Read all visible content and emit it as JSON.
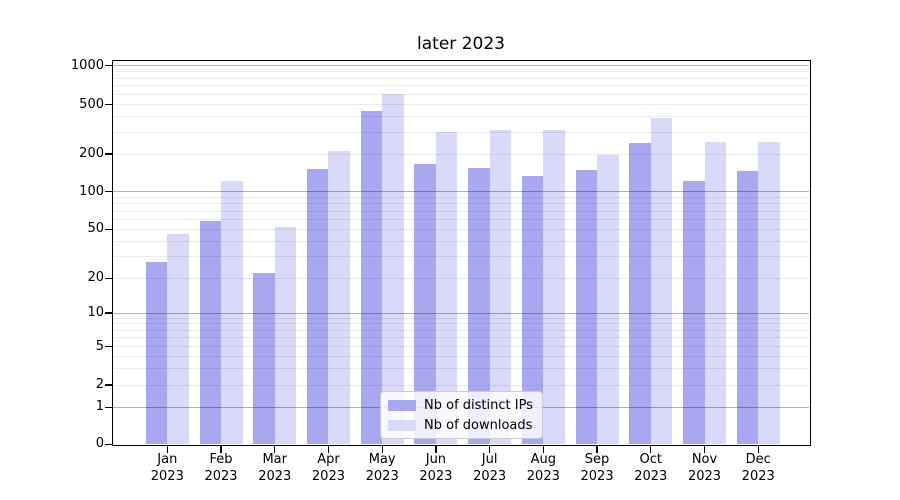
{
  "figure": {
    "title": "later 2023"
  },
  "chart_data": {
    "type": "bar",
    "title": "later 2023",
    "categories": [
      "Jan 2023",
      "Feb 2023",
      "Mar 2023",
      "Apr 2023",
      "May 2023",
      "Jun 2023",
      "Jul 2023",
      "Aug 2023",
      "Sep 2023",
      "Oct 2023",
      "Nov 2023",
      "Dec 2023"
    ],
    "series": [
      {
        "name": "Nb of distinct IPs",
        "color": "#a8a8f0",
        "values": [
          27,
          58,
          22,
          152,
          445,
          166,
          155,
          133,
          148,
          247,
          122,
          147
        ]
      },
      {
        "name": "Nb of downloads",
        "color": "#d9d9f9",
        "values": [
          46,
          122,
          52,
          210,
          600,
          300,
          313,
          312,
          198,
          390,
          250,
          250
        ]
      }
    ],
    "yscale": "symlog",
    "ylim": [
      0,
      1080
    ],
    "yticks": [
      0,
      1,
      2,
      5,
      10,
      20,
      50,
      100,
      200,
      500,
      1000
    ],
    "ytick_labels": [
      "0",
      "1",
      "2",
      "5",
      "10",
      "20",
      "50",
      "100",
      "200",
      "500",
      "1000"
    ],
    "major_grid_values": [
      1,
      10,
      100,
      1000
    ],
    "grid": true,
    "legend_position": "lower center",
    "xlabel": "",
    "ylabel": ""
  },
  "legend": {
    "items": [
      {
        "label": "Nb of distinct IPs",
        "color": "#a8a8f0"
      },
      {
        "label": "Nb of downloads",
        "color": "#d9d9f9"
      }
    ]
  },
  "colors": {
    "background": "#ffffff",
    "spine": "#000000",
    "major_grid": "#b0b0b0",
    "minor_grid": "#ececec",
    "bar_dark": "#a8a8f0",
    "bar_light": "#d9d9f9"
  }
}
